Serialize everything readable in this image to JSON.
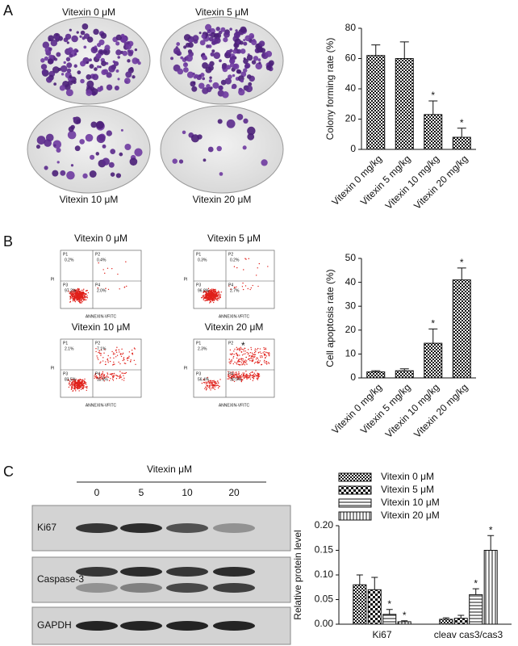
{
  "panels": {
    "a": "A",
    "b": "B",
    "c": "C"
  },
  "colony": {
    "plates": [
      "Vitexin 0 μM",
      "Vitexin 5 μM",
      "Vitexin 10 μM",
      "Vitexin 20 μM"
    ]
  },
  "flow": {
    "x_label": "ANNEXIN-VFITC",
    "y_label": "PI",
    "plots": [
      {
        "title": "Vitexin 0 μM",
        "quadrants": [
          {
            "name": "P1",
            "value": "0.2%"
          },
          {
            "name": "P2",
            "value": "0.4%"
          },
          {
            "name": "P3",
            "value": "97.2%"
          },
          {
            "name": "P4",
            "value": "2.0%"
          }
        ]
      },
      {
        "title": "Vitexin 5 μM",
        "quadrants": [
          {
            "name": "P1",
            "value": "0.3%"
          },
          {
            "name": "P2",
            "value": "0.2%"
          },
          {
            "name": "P3",
            "value": "96.8%"
          },
          {
            "name": "P4",
            "value": "2.7%"
          }
        ]
      },
      {
        "title": "Vitexin 10 μM",
        "quadrants": [
          {
            "name": "P1",
            "value": "2.1%"
          },
          {
            "name": "P2",
            "value": "7.1%"
          },
          {
            "name": "P3",
            "value": "83.5%"
          },
          {
            "name": "P4",
            "value": "11.5%"
          }
        ]
      },
      {
        "title": "Vitexin 20 μM",
        "quadrants": [
          {
            "name": "P1",
            "value": "2.3%"
          },
          {
            "name": "P2",
            "value": "*"
          },
          {
            "name": "P3",
            "value": "56.4%"
          },
          {
            "name": "P4",
            "value": "30.9%"
          }
        ]
      }
    ]
  },
  "western": {
    "title": "Vitexin μM",
    "lanes": [
      "0",
      "5",
      "10",
      "20"
    ],
    "rows": [
      "Ki67",
      "Caspase-3",
      "GAPDH"
    ]
  },
  "chart_data": [
    {
      "type": "bar",
      "y_label": "Colony forming rate (%)",
      "categories": [
        "Vitexin 0 mg/kg",
        "Vitexin 5 mg/kg",
        "Vitexin 10 mg/kg",
        "Vitexin 20 mg/kg"
      ],
      "values": [
        62,
        60,
        23,
        8
      ],
      "errors": [
        7,
        11,
        9,
        6
      ],
      "pattern": "checker",
      "annotations": [
        {
          "category": "Vitexin 10 mg/kg",
          "text": "*"
        },
        {
          "category": "Vitexin 20 mg/kg",
          "text": "*"
        }
      ],
      "ylim": [
        0,
        80
      ],
      "yticks": [
        0,
        20,
        40,
        60,
        80
      ]
    },
    {
      "type": "bar",
      "y_label": "Cell apoptosis rate (%)",
      "categories": [
        "Vitexin 0 mg/kg",
        "Vitexin 5 mg/kg",
        "Vitexin 10 mg/kg",
        "Vitexin 20 mg/kg"
      ],
      "values": [
        2.5,
        3,
        14.5,
        41
      ],
      "errors": [
        0.5,
        0.8,
        6,
        5
      ],
      "pattern": "checker",
      "annotations": [
        {
          "category": "Vitexin 10 mg/kg",
          "text": "*"
        },
        {
          "category": "Vitexin 20 mg/kg",
          "text": "*"
        }
      ],
      "ylim": [
        0,
        50
      ],
      "yticks": [
        0,
        10,
        20,
        30,
        40,
        50
      ]
    },
    {
      "type": "bar",
      "y_label": "Relative protein level",
      "categories": [
        "Ki67",
        "cleav cas3/cas3"
      ],
      "series": [
        {
          "name": "Vitexin 0 μM",
          "pattern": "checker",
          "values": [
            0.08,
            0.01
          ],
          "errors": [
            0.02,
            0.003
          ]
        },
        {
          "name": "Vitexin 5 μM",
          "pattern": "checker-large",
          "values": [
            0.07,
            0.012
          ],
          "errors": [
            0.025,
            0.006
          ]
        },
        {
          "name": "Vitexin 10 μM",
          "pattern": "horizontal",
          "values": [
            0.02,
            0.06
          ],
          "errors": [
            0.01,
            0.012
          ]
        },
        {
          "name": "Vitexin 20 μM",
          "pattern": "vertical",
          "values": [
            0.005,
            0.15
          ],
          "errors": [
            0.002,
            0.03
          ]
        }
      ],
      "annotations": [
        {
          "series": "Vitexin 10 μM",
          "category": "Ki67",
          "text": "*"
        },
        {
          "series": "Vitexin 20 μM",
          "category": "Ki67",
          "text": "*"
        },
        {
          "series": "Vitexin 10 μM",
          "category": "cleav cas3/cas3",
          "text": "*"
        },
        {
          "series": "Vitexin 20 μM",
          "category": "cleav cas3/cas3",
          "text": "*"
        }
      ],
      "ylim": [
        0,
        0.2
      ],
      "yticks": [
        {
          "value": 0,
          "label": "0.00"
        },
        {
          "value": 0.05,
          "label": "0.05"
        },
        {
          "value": 0.1,
          "label": "0.10"
        },
        {
          "value": 0.15,
          "label": "0.15"
        },
        {
          "value": 0.2,
          "label": "0.20"
        }
      ]
    }
  ]
}
